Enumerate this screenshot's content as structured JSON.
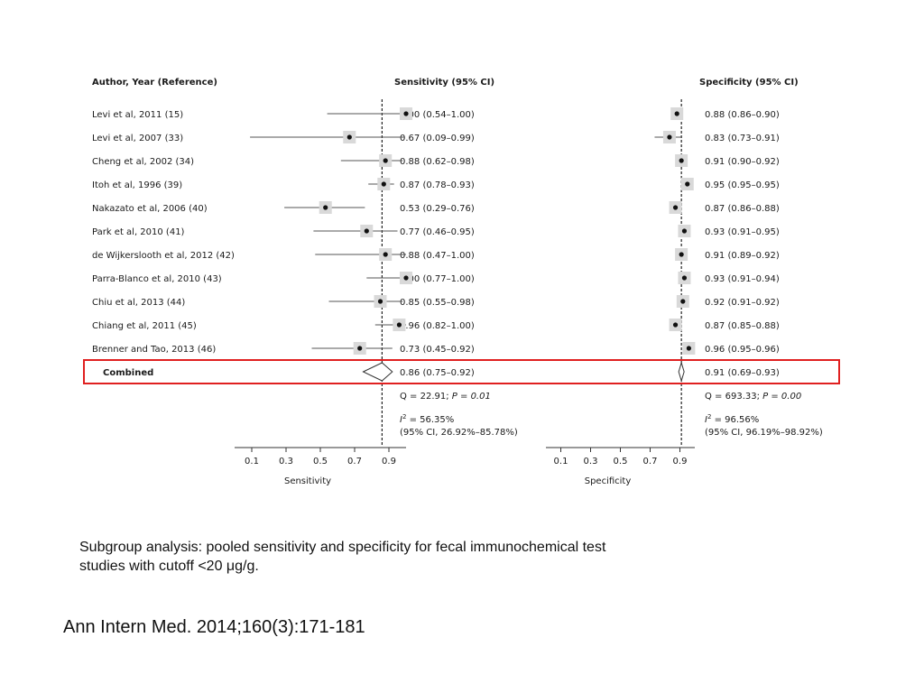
{
  "chart_data": {
    "type": "forest",
    "headers": {
      "study": "Author, Year (Reference)",
      "sensitivity": "Sensitivity (95% CI)",
      "specificity": "Specificity (95% CI)"
    },
    "studies": [
      {
        "label": "Levi et al, 2011 (15)",
        "sens": 1.0,
        "sens_lo": 0.54,
        "sens_hi": 1.0,
        "sens_text": "1.00 (0.54–1.00)",
        "spec": 0.88,
        "spec_lo": 0.86,
        "spec_hi": 0.9,
        "spec_text": "0.88 (0.86–0.90)"
      },
      {
        "label": "Levi et al, 2007 (33)",
        "sens": 0.67,
        "sens_lo": 0.09,
        "sens_hi": 0.99,
        "sens_text": "0.67 (0.09–0.99)",
        "spec": 0.83,
        "spec_lo": 0.73,
        "spec_hi": 0.91,
        "spec_text": "0.83 (0.73–0.91)"
      },
      {
        "label": "Cheng et al, 2002 (34)",
        "sens": 0.88,
        "sens_lo": 0.62,
        "sens_hi": 0.98,
        "sens_text": "0.88 (0.62–0.98)",
        "spec": 0.91,
        "spec_lo": 0.9,
        "spec_hi": 0.92,
        "spec_text": "0.91 (0.90–0.92)"
      },
      {
        "label": "Itoh et al, 1996 (39)",
        "sens": 0.87,
        "sens_lo": 0.78,
        "sens_hi": 0.93,
        "sens_text": "0.87 (0.78–0.93)",
        "spec": 0.95,
        "spec_lo": 0.95,
        "spec_hi": 0.95,
        "spec_text": "0.95 (0.95–0.95)"
      },
      {
        "label": "Nakazato et al, 2006 (40)",
        "sens": 0.53,
        "sens_lo": 0.29,
        "sens_hi": 0.76,
        "sens_text": "0.53 (0.29–0.76)",
        "spec": 0.87,
        "spec_lo": 0.86,
        "spec_hi": 0.88,
        "spec_text": "0.87 (0.86–0.88)"
      },
      {
        "label": "Park et al, 2010 (41)",
        "sens": 0.77,
        "sens_lo": 0.46,
        "sens_hi": 0.95,
        "sens_text": "0.77 (0.46–0.95)",
        "spec": 0.93,
        "spec_lo": 0.91,
        "spec_hi": 0.95,
        "spec_text": "0.93 (0.91–0.95)"
      },
      {
        "label": "de Wijkerslooth et al, 2012 (42)",
        "sens": 0.88,
        "sens_lo": 0.47,
        "sens_hi": 1.0,
        "sens_text": "0.88 (0.47–1.00)",
        "spec": 0.91,
        "spec_lo": 0.89,
        "spec_hi": 0.92,
        "spec_text": "0.91 (0.89–0.92)"
      },
      {
        "label": "Parra-Blanco et al, 2010 (43)",
        "sens": 1.0,
        "sens_lo": 0.77,
        "sens_hi": 1.0,
        "sens_text": "1.00 (0.77–1.00)",
        "spec": 0.93,
        "spec_lo": 0.91,
        "spec_hi": 0.94,
        "spec_text": "0.93 (0.91–0.94)"
      },
      {
        "label": "Chiu et al, 2013 (44)",
        "sens": 0.85,
        "sens_lo": 0.55,
        "sens_hi": 0.98,
        "sens_text": "0.85 (0.55–0.98)",
        "spec": 0.92,
        "spec_lo": 0.91,
        "spec_hi": 0.92,
        "spec_text": "0.92 (0.91–0.92)"
      },
      {
        "label": "Chiang et al, 2011 (45)",
        "sens": 0.96,
        "sens_lo": 0.82,
        "sens_hi": 1.0,
        "sens_text": "0.96 (0.82–1.00)",
        "spec": 0.87,
        "spec_lo": 0.85,
        "spec_hi": 0.88,
        "spec_text": "0.87 (0.85–0.88)"
      },
      {
        "label": "Brenner and Tao, 2013 (46)",
        "sens": 0.73,
        "sens_lo": 0.45,
        "sens_hi": 0.92,
        "sens_text": "0.73 (0.45–0.92)",
        "spec": 0.96,
        "spec_lo": 0.95,
        "spec_hi": 0.96,
        "spec_text": "0.96 (0.95–0.96)"
      }
    ],
    "combined": {
      "label": "Combined",
      "sens": 0.86,
      "sens_lo": 0.75,
      "sens_hi": 0.92,
      "sens_text": "0.86 (0.75–0.92)",
      "spec": 0.91,
      "spec_lo": 0.69,
      "spec_hi": 0.93,
      "spec_text": "0.91 (0.69–0.93)"
    },
    "heterogeneity": {
      "sensitivity": {
        "q": "Q = 22.91; ",
        "p": "P = 0.01",
        "i2": "= 56.35%",
        "ci": "(95% CI, 26.92%–85.78%)"
      },
      "specificity": {
        "q": "Q = 693.33; ",
        "p": "P = 0.00",
        "i2": "= 96.56%",
        "ci": "(95% CI, 96.19%–98.92%)"
      }
    },
    "i2_symbol": "I",
    "i2_superscript": "2",
    "axes": {
      "sensitivity": {
        "xlabel": "Sensitivity",
        "ticks": [
          0.1,
          0.3,
          0.5,
          0.7,
          0.9
        ],
        "tick_labels": [
          "0.1",
          "0.3",
          "0.5",
          "0.7",
          "0.9"
        ],
        "xlim": [
          0.0,
          1.0
        ]
      },
      "specificity": {
        "xlabel": "Specificity",
        "ticks": [
          0.1,
          0.3,
          0.5,
          0.7,
          0.9
        ],
        "tick_labels": [
          "0.1",
          "0.3",
          "0.5",
          "0.7",
          "0.9"
        ],
        "xlim": [
          0.0,
          1.0
        ]
      }
    },
    "highlight_color": "#e02020"
  },
  "caption": "Subgroup analysis: pooled sensitivity and specificity for fecal immunochemical test studies with cutoff <20 μg/g.",
  "citation": "Ann Intern Med. 2014;160(3):171-181"
}
